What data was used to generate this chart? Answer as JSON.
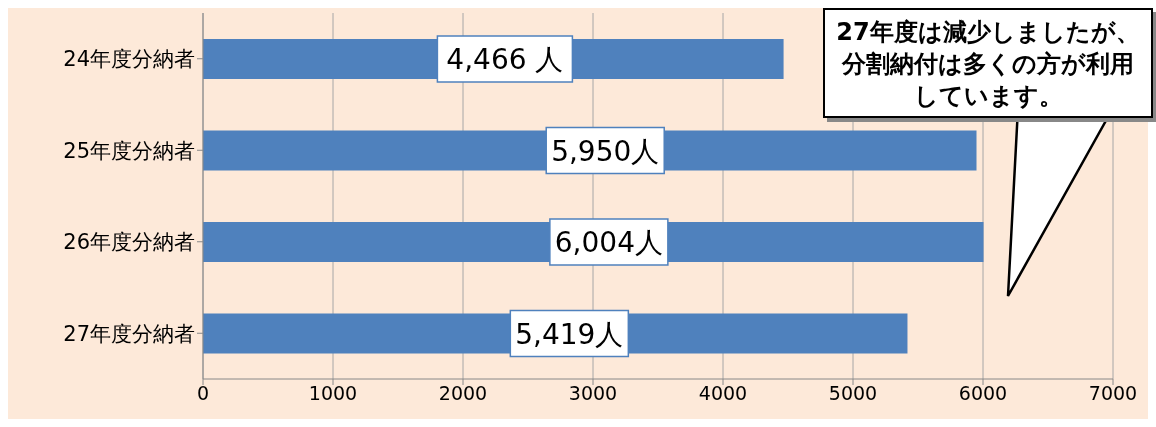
{
  "chart_data": {
    "type": "bar",
    "orientation": "horizontal",
    "categories": [
      "24年度分納者",
      "25年度分納者",
      "26年度分納者",
      "27年度分納者"
    ],
    "values": [
      4466,
      5950,
      6004,
      5419
    ],
    "value_labels": [
      "4,466 人",
      "5,950人",
      "6,004人",
      "5,419人"
    ],
    "color": "#4f81bd",
    "xlim": [
      0,
      7000
    ],
    "xticks": [
      0,
      1000,
      2000,
      3000,
      4000,
      5000,
      6000,
      7000
    ],
    "grid": "x",
    "annotations": [
      "27年度は減少しましたが、分割納付は多くの方が利用しています。"
    ]
  }
}
